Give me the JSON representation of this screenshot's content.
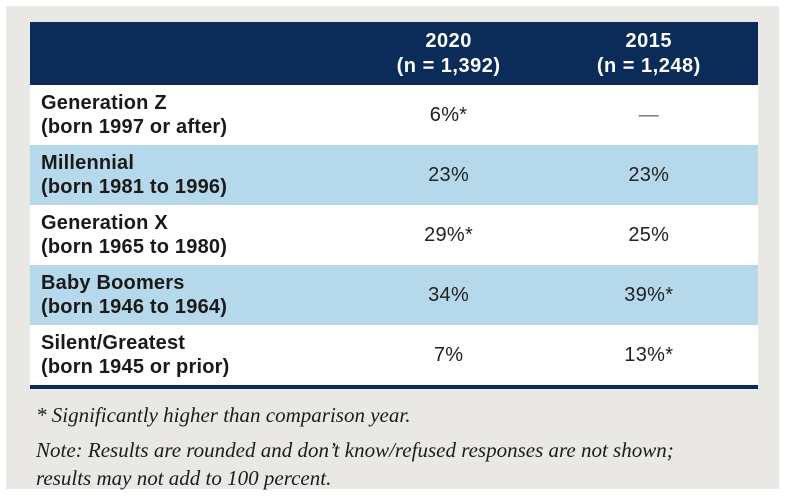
{
  "table": {
    "header": {
      "col_2020": {
        "year": "2020",
        "n": "(n = 1,392)"
      },
      "col_2015": {
        "year": "2015",
        "n": "(n = 1,248)"
      }
    },
    "rows": [
      {
        "name": "Generation Z",
        "detail": "(born 1997 or after)",
        "v2020": "6%*",
        "v2015": "—"
      },
      {
        "name": "Millennial",
        "detail": "(born 1981 to 1996)",
        "v2020": "23%",
        "v2015": "23%"
      },
      {
        "name": "Generation X",
        "detail": "(born 1965 to 1980)",
        "v2020": "29%*",
        "v2015": "25%"
      },
      {
        "name": "Baby Boomers",
        "detail": "(born 1946 to 1964)",
        "v2020": "34%",
        "v2015": "39%*"
      },
      {
        "name": "Silent/Greatest",
        "detail": "(born 1945 or prior)",
        "v2020": "7%",
        "v2015": "13%*"
      }
    ]
  },
  "footnotes": {
    "significance": "* Significantly higher than comparison year.",
    "note": "Note: Results are rounded and don’t know/refused responses are not shown; results may not add to 100 percent."
  },
  "colors": {
    "header_navy": "#0b2b58",
    "row_blue": "#b5d8eb",
    "row_white": "#ffffff",
    "panel_gray": "#e9e8e5",
    "muted_dash": "#6f6f6f"
  }
}
